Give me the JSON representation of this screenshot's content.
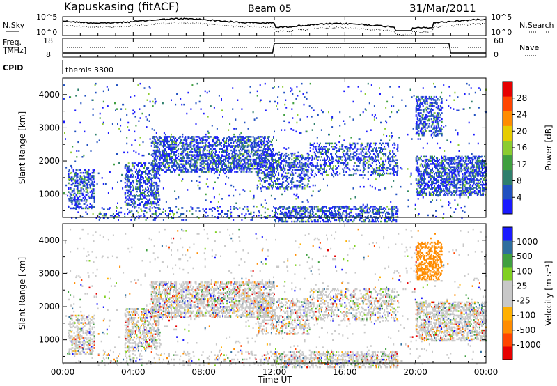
{
  "header": {
    "station": "Kapuskasing (fitACF)",
    "beam": "Beam 05",
    "date": "31/Mar/2011"
  },
  "side_labels": {
    "nsky": "N.Sky",
    "freq_line1": "Freq.",
    "freq_line2": "[MHz]",
    "cpid": "CPID",
    "nsearch": "N.Search",
    "nave": "Nave"
  },
  "cpid_text": "themis 3300",
  "colors": {
    "power": [
      "#1a1aff",
      "#2050c0",
      "#2e7f6c",
      "#3f9f3f",
      "#8ccc30",
      "#e6cc00",
      "#ff8c00",
      "#ff4500",
      "#e60000"
    ],
    "velocity": [
      "#e60000",
      "#ff4500",
      "#ff8c00",
      "#ffb000",
      "#c8c8c8",
      "#c8c8c8",
      "#80d020",
      "#3f9f3f",
      "#2e6e9e",
      "#1a1aff"
    ]
  },
  "chart_data": [
    {
      "type": "line",
      "panel": "noise",
      "yticks": [
        "10^5",
        "10^0"
      ],
      "yticks_right": [
        "10^5",
        "10^0"
      ],
      "series": [
        {
          "name": "N.Sky",
          "style": "solid"
        },
        {
          "name": "N.Search",
          "style": "dotted"
        }
      ]
    },
    {
      "type": "line",
      "panel": "frequency",
      "yticks": [
        "18",
        "8"
      ],
      "yticks_right": [
        "60",
        "0"
      ],
      "series": [
        {
          "name": "Freq.",
          "style": "solid"
        },
        {
          "name": "Nave",
          "style": "dotted"
        }
      ]
    },
    {
      "type": "heatmap",
      "panel": "power",
      "ylabel": "Slant Range [km]",
      "yticks": [
        "1000",
        "2000",
        "3000",
        "4000"
      ],
      "colorbar_label": "Power [dB]",
      "colorbar_ticks": [
        "4",
        "8",
        "12",
        "16",
        "20",
        "24",
        "28"
      ]
    },
    {
      "type": "heatmap",
      "panel": "velocity",
      "ylabel": "Slant Range [km]",
      "yticks": [
        "1000",
        "2000",
        "3000",
        "4000"
      ],
      "colorbar_label": "Velocity [m s⁻¹]",
      "colorbar_ticks": [
        "1000",
        "500",
        "100",
        "25",
        "-25",
        "-100",
        "-500",
        "-1000"
      ]
    }
  ],
  "xaxis": {
    "ticks": [
      "00:00",
      "04:00",
      "08:00",
      "12:00",
      "16:00",
      "20:00",
      "00:00"
    ],
    "label": "Time UT"
  }
}
